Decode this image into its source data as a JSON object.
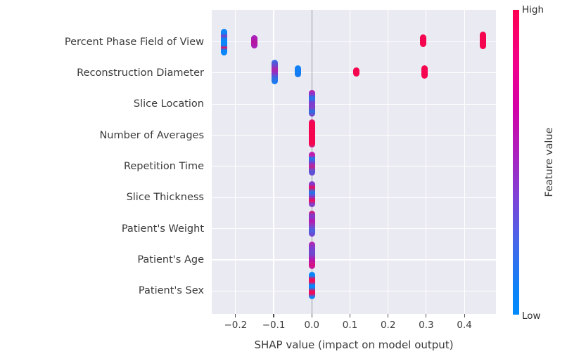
{
  "figure": {
    "kind": "shap-summary-plot",
    "background": "#ffffff",
    "plot_background": "#eaeaf2",
    "gridline_color": "#ffffff",
    "zero_line_color": "#9a9a9f",
    "text_color": "#3a3a3a"
  },
  "chart_data": {
    "type": "scatter",
    "subtype": "shap_summary_beeswarm",
    "title": "",
    "xlabel": "SHAP value (impact on model output)",
    "ylabel": "",
    "xlim": [
      -0.2625,
      0.4828
    ],
    "grid": true,
    "zero_line": 0.0,
    "x_ticks": [
      -0.2,
      -0.1,
      0.0,
      0.1,
      0.2,
      0.3,
      0.4
    ],
    "x_tick_labels": [
      "−0.2",
      "−0.1",
      "0.0",
      "0.1",
      "0.2",
      "0.3",
      "0.4"
    ],
    "legend_position": "right-colorbar",
    "colorbar": {
      "title": "Feature value",
      "high_label": "High",
      "low_label": "Low",
      "high_color": "#ff0051",
      "mid_color": "#a126c6",
      "low_color": "#008bfb",
      "gradient_stops": [
        "#ff0051 0%",
        "#f2008d 18%",
        "#d400a6 32%",
        "#aa22c0 48%",
        "#7d44d8 62%",
        "#4766ea 76%",
        "#0c83f8 92%",
        "#008bfb 100%"
      ]
    },
    "features": [
      {
        "name": "Percent Phase Field of View",
        "clusters": [
          {
            "shap": -0.23,
            "spread": [
              -19,
              19
            ],
            "stops": [
              "#0a86fa 0%",
              "#0e84f8 18%",
              "#7b3fc6 26%",
              "#0a86fa 38%",
              "#0a86fa 62%",
              "#d6156e 70%",
              "#0a86fa 80%",
              "#0a86fa 100%"
            ]
          },
          {
            "shap": -0.15,
            "spread": [
              -10,
              9
            ],
            "stops": [
              "#a922c2 0%",
              "#b5179e 55%",
              "#a922c2 100%"
            ]
          },
          {
            "shap": 0.291,
            "spread": [
              -11,
              7
            ],
            "stops": [
              "#f5054f 0%",
              "#f5054f 100%"
            ]
          },
          {
            "shap": 0.448,
            "spread": [
              -15,
              10
            ],
            "stops": [
              "#f5054f 0%",
              "#f5054f 100%"
            ]
          }
        ]
      },
      {
        "name": "Reconstruction Diameter",
        "clusters": [
          {
            "shap": -0.098,
            "spread": [
              -19,
              16
            ],
            "stops": [
              "#2f6fe8 0%",
              "#6a4ad0 22%",
              "#b022a8 40%",
              "#8a35c8 55%",
              "#3a68e0 72%",
              "#0f82f6 100%"
            ]
          },
          {
            "shap": -0.037,
            "spread": [
              -11,
              6
            ],
            "stops": [
              "#0f82f6 0%",
              "#1779f2 100%"
            ]
          },
          {
            "shap": 0.117,
            "spread": [
              -8,
              5
            ],
            "stops": [
              "#f5054f 0%",
              "#f5054f 100%"
            ]
          },
          {
            "shap": 0.295,
            "spread": [
              -11,
              8
            ],
            "stops": [
              "#f5054f 0%",
              "#f5054f 100%"
            ]
          }
        ]
      },
      {
        "name": "Slice Location",
        "clusters": [
          {
            "shap": 0.0,
            "spread": [
              -20,
              18
            ],
            "stops": [
              "#c01fae 0%",
              "#8a35c8 16%",
              "#1a7cf0 30%",
              "#7a3fd0 48%",
              "#8440c8 66%",
              "#2a70e0 80%",
              "#8440c8 100%"
            ]
          }
        ]
      },
      {
        "name": "Number of Averages",
        "clusters": [
          {
            "shap": 0.0,
            "spread": [
              -23,
              17
            ],
            "stops": [
              "#d8127e 0%",
              "#f5054f 10%",
              "#f5054f 88%",
              "#c9208f 100%"
            ]
          }
        ]
      },
      {
        "name": "Repetition Time",
        "clusters": [
          {
            "shap": 0.0,
            "spread": [
              -21,
              13
            ],
            "stops": [
              "#c01fae 0%",
              "#c01fae 16%",
              "#1a7cf0 28%",
              "#7a3fd0 46%",
              "#c9208f 62%",
              "#5a55d8 80%",
              "#6a4ad0 100%"
            ]
          }
        ]
      },
      {
        "name": "Slice Thickness",
        "clusters": [
          {
            "shap": 0.0,
            "spread": [
              -23,
              14
            ],
            "stops": [
              "#7a3fd0 0%",
              "#8a35c8 12%",
              "#ef0b5e 24%",
              "#1a7cf0 42%",
              "#7a3fd0 58%",
              "#ef0b5e 74%",
              "#8440c8 88%",
              "#8440c8 100%"
            ]
          }
        ]
      },
      {
        "name": "Patient's Weight",
        "clusters": [
          {
            "shap": 0.0,
            "spread": [
              -26,
              11
            ],
            "stops": [
              "#e01370 0%",
              "#7a3fd0 20%",
              "#b817ae 40%",
              "#8440c8 58%",
              "#4a63e0 76%",
              "#7a3fd0 100%"
            ]
          }
        ]
      },
      {
        "name": "Patient's Age",
        "clusters": [
          {
            "shap": 0.0,
            "spread": [
              -26,
              13
            ],
            "stops": [
              "#c01fae 0%",
              "#7a3fd0 24%",
              "#6a4ad0 44%",
              "#b817ae 66%",
              "#d8127e 86%",
              "#c01fae 100%"
            ]
          }
        ]
      },
      {
        "name": "Patient's Sex",
        "clusters": [
          {
            "shap": 0.0,
            "spread": [
              -27,
              12
            ],
            "stops": [
              "#0a86fa 0%",
              "#0a86fa 15%",
              "#ef0b5e 26%",
              "#ef0b5e 37%",
              "#0a86fa 48%",
              "#0a86fa 58%",
              "#ef0b5e 70%",
              "#ef0b5e 80%",
              "#0a86fa 92%",
              "#0a86fa 100%"
            ]
          }
        ]
      }
    ]
  }
}
